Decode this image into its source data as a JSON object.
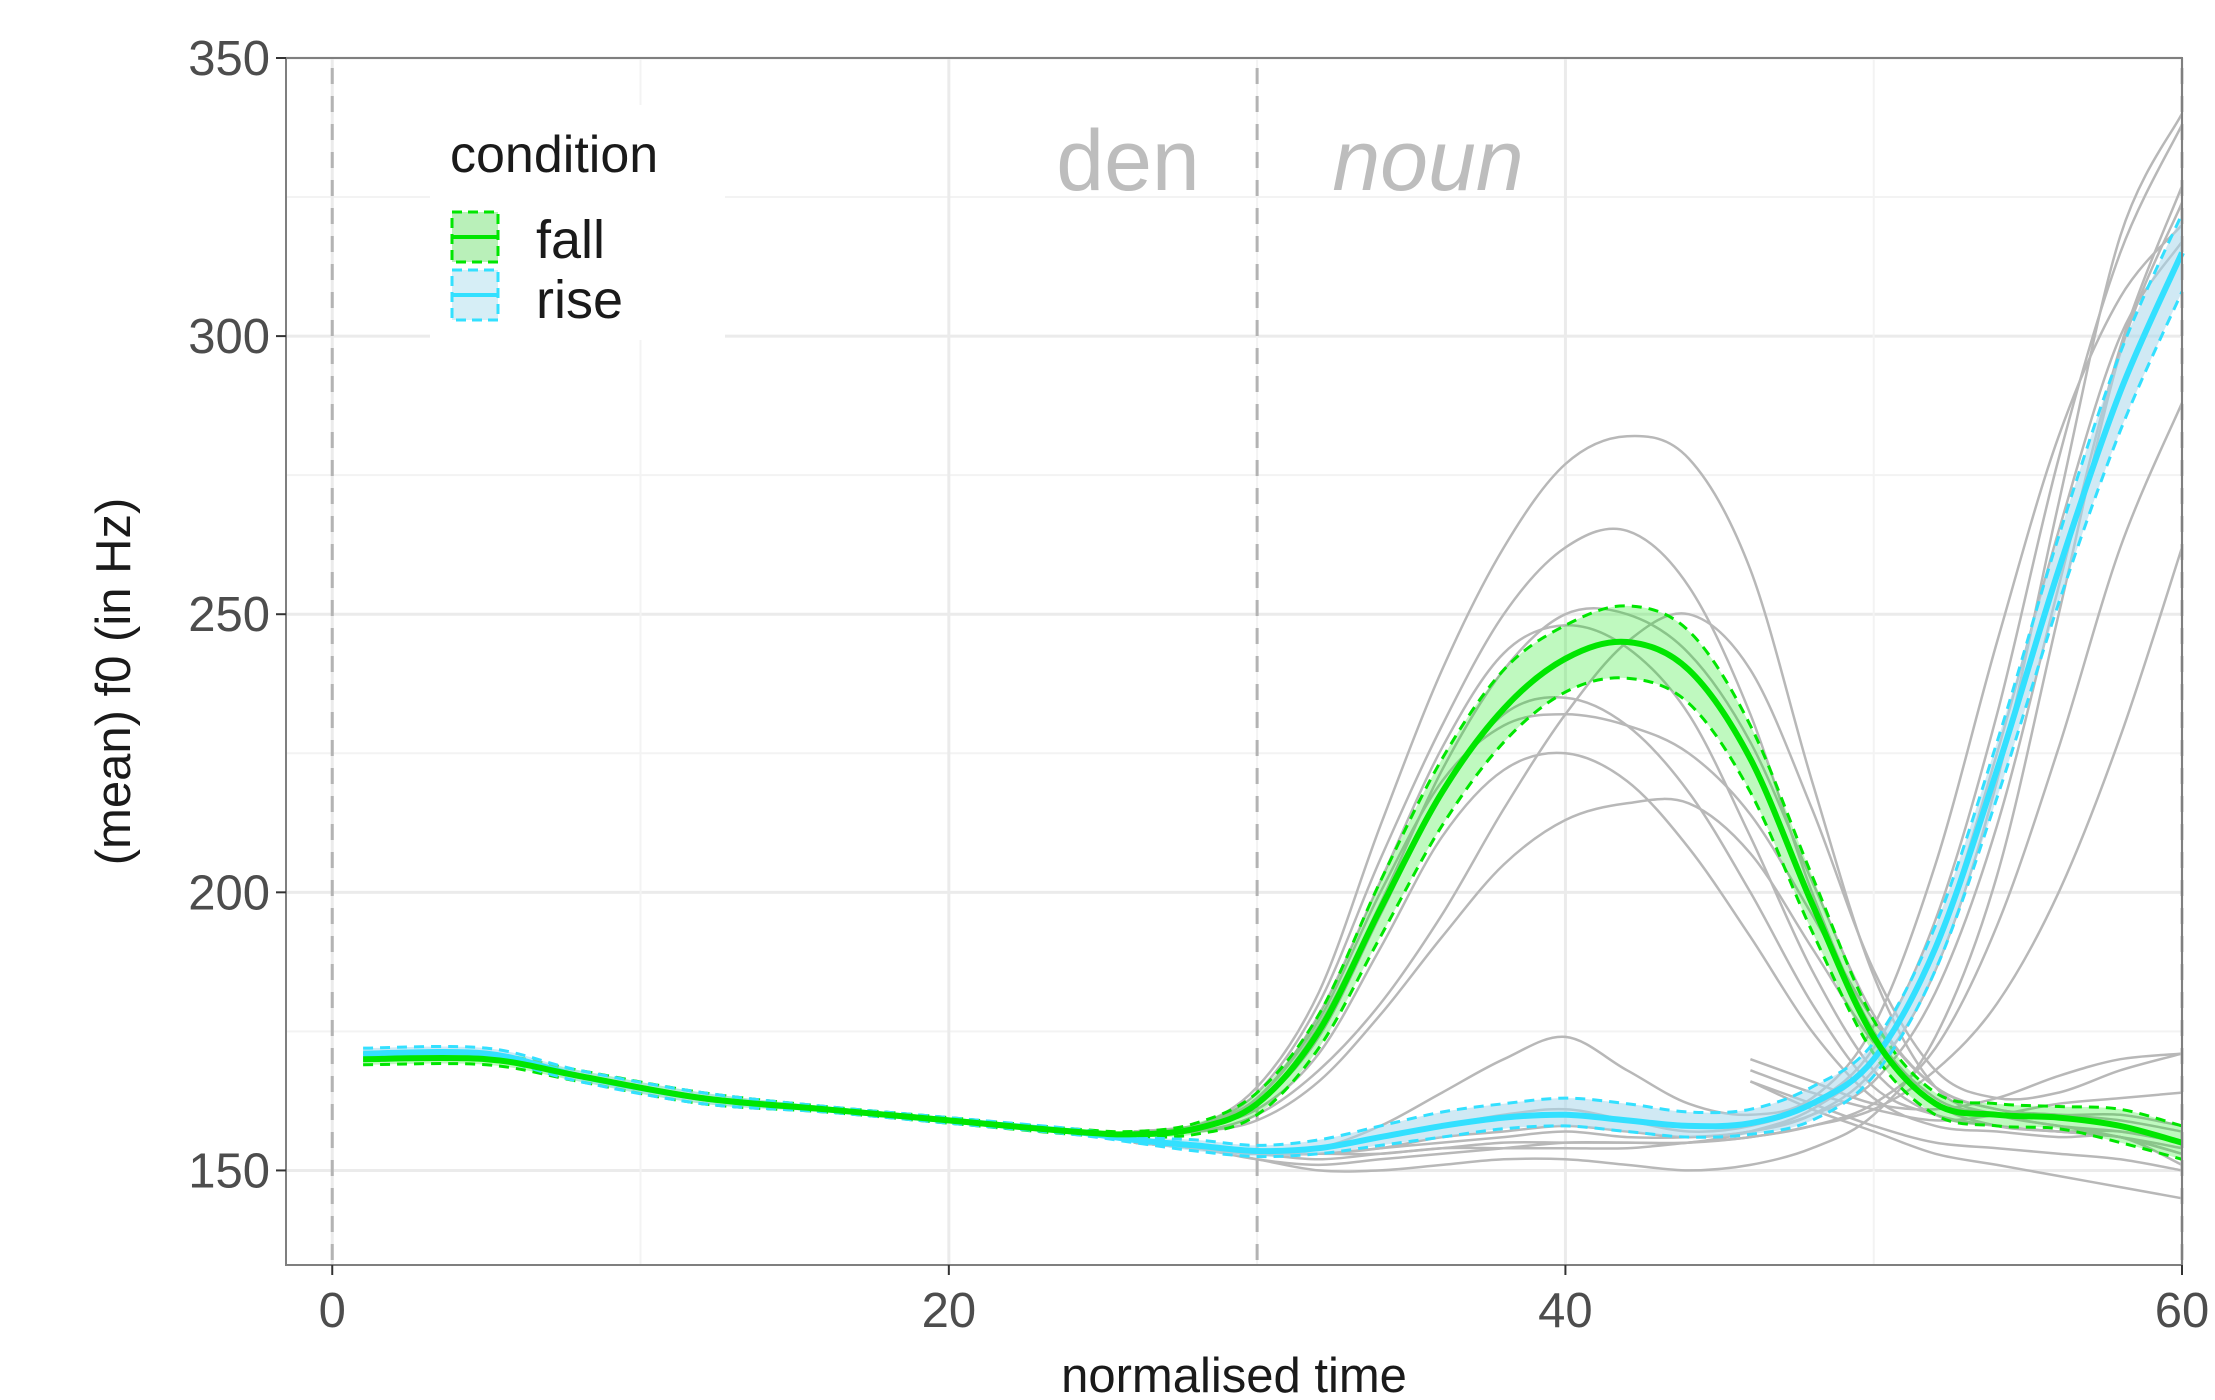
{
  "chart_data": {
    "type": "line",
    "xlabel": "normalised time",
    "ylabel": "(mean) f0 (in Hz)",
    "xlim": [
      -1.5,
      60.0
    ],
    "ylim": [
      133,
      350
    ],
    "x_ticks": [
      0,
      20,
      40,
      60
    ],
    "y_ticks": [
      150,
      200,
      250,
      300,
      350
    ],
    "grid": true,
    "legend": {
      "title": "condition",
      "position": "top-left",
      "entries": [
        {
          "label": "fall",
          "color": "#00e600"
        },
        {
          "label": "rise",
          "color": "#33e0ff"
        }
      ]
    },
    "annotations": [
      {
        "text": "den",
        "x": 25,
        "y": 330,
        "style": "normal"
      },
      {
        "text": "noun",
        "x": 35,
        "y": 330,
        "style": "italic"
      }
    ],
    "vlines": [
      0,
      30,
      60
    ],
    "series": [
      {
        "name": "fall",
        "color": "#00e600",
        "x": [
          1,
          5,
          8,
          12,
          16,
          20,
          24,
          26,
          28,
          30,
          32,
          34,
          36,
          38,
          40,
          42,
          44,
          46,
          48,
          50,
          52,
          54,
          56,
          58,
          60
        ],
        "y": [
          170,
          170,
          167,
          163,
          161,
          159,
          157,
          156.5,
          157.5,
          162,
          175,
          197,
          218,
          233,
          242,
          245,
          240,
          224,
          198,
          174,
          162,
          160,
          159.5,
          158,
          155
        ],
        "lower": [
          169,
          169,
          166,
          162,
          160.5,
          158.5,
          156.5,
          156,
          156.5,
          160,
          172,
          192,
          212,
          227,
          236,
          238.5,
          234,
          218,
          193,
          171,
          160,
          158,
          157.5,
          155,
          152
        ],
        "upper": [
          171,
          171,
          168,
          164,
          161.5,
          159.5,
          157.5,
          157,
          158.5,
          164,
          178,
          202,
          224,
          240,
          248,
          251.5,
          247,
          230,
          203,
          177,
          164,
          162,
          161.5,
          161,
          158
        ]
      },
      {
        "name": "rise",
        "color": "#33e0ff",
        "x": [
          1,
          5,
          8,
          12,
          16,
          20,
          24,
          26,
          28,
          30,
          32,
          34,
          36,
          38,
          40,
          42,
          44,
          46,
          48,
          50,
          52,
          54,
          56,
          58,
          60
        ],
        "y": [
          171,
          171,
          167,
          163,
          161,
          159,
          157,
          155.5,
          154.5,
          153.5,
          154,
          156,
          158,
          159.5,
          160,
          159,
          158,
          158.5,
          162,
          170,
          190,
          222,
          258,
          290,
          315
        ],
        "lower": [
          170,
          170,
          166,
          162,
          160.5,
          158.5,
          156.5,
          155,
          153.5,
          152.5,
          153,
          154.5,
          156,
          157.5,
          158,
          157,
          156,
          156.5,
          159,
          167,
          186,
          217,
          252,
          283,
          308
        ],
        "upper": [
          172,
          172,
          168,
          164,
          161.5,
          159.5,
          157.5,
          156,
          155.5,
          154.5,
          155.5,
          158,
          160.5,
          162,
          163,
          162,
          160.5,
          161,
          165,
          173,
          194,
          227,
          264,
          297,
          322
        ]
      }
    ],
    "individual_traces_x": [
      26,
      28,
      30,
      32,
      34,
      36,
      38,
      40,
      42,
      44,
      46,
      48,
      50,
      52,
      54,
      56,
      58,
      60
    ],
    "individual_traces_fall": [
      [
        157,
        158,
        165,
        182,
        212,
        240,
        262,
        277,
        282,
        278,
        258,
        220,
        185,
        165,
        160,
        158,
        156,
        153
      ],
      [
        157,
        158,
        164,
        180,
        206,
        230,
        250,
        262,
        265,
        255,
        232,
        200,
        175,
        163,
        160,
        158,
        157,
        155
      ],
      [
        157,
        158,
        162,
        176,
        198,
        222,
        240,
        250,
        250,
        243,
        227,
        202,
        178,
        165,
        161,
        160,
        159,
        157
      ],
      [
        157,
        158,
        163,
        178,
        202,
        226,
        243,
        248,
        244,
        232,
        210,
        186,
        168,
        160,
        158,
        157,
        156,
        154
      ],
      [
        157,
        157,
        160,
        168,
        180,
        196,
        215,
        232,
        245,
        250,
        240,
        215,
        186,
        168,
        163,
        164,
        168,
        171
      ],
      [
        157,
        157,
        159,
        166,
        178,
        192,
        205,
        213,
        216,
        216,
        207,
        190,
        173,
        162,
        158,
        157,
        156,
        153
      ],
      [
        157,
        158,
        162,
        174,
        196,
        218,
        232,
        235,
        230,
        218,
        200,
        180,
        165,
        160,
        158,
        157,
        157,
        155
      ],
      [
        157,
        158,
        161,
        171,
        190,
        210,
        222,
        225,
        220,
        208,
        192,
        175,
        163,
        158,
        157,
        156,
        156,
        151
      ],
      [
        157,
        158,
        163,
        177,
        200,
        220,
        230,
        232,
        230,
        225,
        214,
        196,
        177,
        165,
        161,
        160,
        160,
        158
      ]
    ],
    "individual_traces_rise": [
      [
        155,
        154,
        153,
        153,
        154,
        155,
        156,
        157,
        156,
        156,
        157,
        160,
        168,
        186,
        220,
        270,
        318,
        340
      ],
      [
        155,
        154,
        153,
        154,
        156,
        158,
        160,
        161,
        159,
        157,
        158,
        162,
        172,
        195,
        232,
        278,
        315,
        338
      ],
      [
        155,
        154,
        153,
        153,
        154,
        156,
        157,
        158,
        157,
        156,
        157,
        160,
        166,
        182,
        212,
        255,
        298,
        327
      ],
      [
        155,
        154,
        153,
        152,
        153,
        154,
        155,
        155,
        155,
        155,
        157,
        161,
        170,
        190,
        225,
        265,
        300,
        317
      ],
      [
        155,
        154,
        153,
        153,
        153,
        154,
        154,
        154,
        154,
        155,
        156,
        158,
        162,
        172,
        194,
        226,
        262,
        288
      ],
      [
        155,
        154,
        152,
        151,
        152,
        153,
        154,
        155,
        155,
        155,
        156,
        158,
        161,
        168,
        180,
        200,
        228,
        262
      ],
      [
        155,
        154,
        153,
        154,
        158,
        164,
        170,
        174,
        168,
        162,
        160,
        163,
        176,
        205,
        245,
        282,
        307,
        320
      ],
      [
        155,
        154,
        152,
        150,
        150,
        151,
        152,
        152,
        151,
        150,
        151,
        154,
        160,
        174,
        203,
        250,
        297,
        324
      ]
    ],
    "individual_traces_tail": [
      [
        170,
        166,
        162,
        161,
        163,
        167,
        170,
        171
      ],
      [
        168,
        164,
        161,
        159,
        160,
        162,
        163,
        164
      ],
      [
        166,
        162,
        158,
        155,
        154,
        153,
        152,
        150
      ],
      [
        166,
        161,
        157,
        153,
        151,
        149,
        147,
        145
      ]
    ],
    "individual_traces_tail_x": [
      46,
      48,
      50,
      52,
      54,
      56,
      58,
      60
    ]
  }
}
